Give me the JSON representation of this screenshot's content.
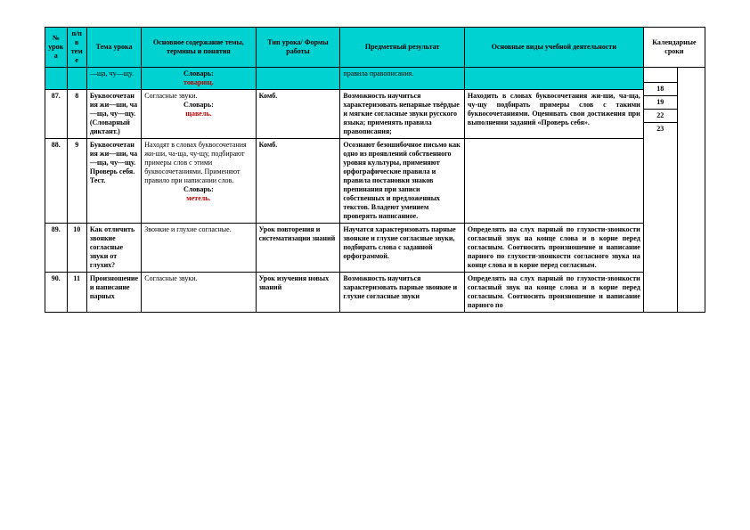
{
  "colors": {
    "header_bg": "#00d2d2",
    "border": "#000000",
    "text": "#000000",
    "accent_red": "#c00000",
    "page_bg": "#ffffff"
  },
  "typography": {
    "font_family": "Times New Roman",
    "header_fontsize": 8,
    "cell_fontsize": 8
  },
  "columns": {
    "num": "№ урока",
    "pp": "п/п в теме",
    "theme": "Тема урока",
    "content": "Основное содержание темы, термины и понятия",
    "type": "Тип урока/ Формы работы",
    "result": "Предметный результат",
    "activity": "Основные  виды учебной деятельности",
    "dates": "Календарные сроки"
  },
  "continuation_row": {
    "theme": "—ща, чу—щу.",
    "content_label": "Словарь:",
    "content_word": "товарищ.",
    "result": "правила правописания."
  },
  "rows": [
    {
      "num": "87.",
      "pp": "8",
      "theme": "Буквосочетания жи—ши, ча—ща, чу—щу. (Словарный диктант.)",
      "content_main": "Согласные звуки.",
      "content_label": "Словарь:",
      "content_word": "щавель.",
      "type": "Комб.",
      "result": "Возможность научиться характеризовать непарные твёрдые и мягкие согласные звуки русского языка; применять правила правописания;",
      "activity": "Находить в словах буквосочетания жи-ши, ча-ща, чу-щу подбирать примеры слов с такими буквосочетаниями. Оценивать свои достижения при выполнении заданий «Проверь себя».",
      "date1": "18",
      "date2": ""
    },
    {
      "num": "88.",
      "pp": "9",
      "theme": "Буквосочетания жи—ши, ча—ща, чу—щу. Проверь себя. Тест.",
      "content_main": "Находят в словах буквосочетания жи-ши, ча-ща, чу-щу, подбирают примеры слов с этими буквосочетаниями. Применяют правило при написании слов.",
      "content_label": "Словарь:",
      "content_word": "метель.",
      "type": "Комб.",
      "result": "Осознают безошибочное письмо как одно из проявлений собственного уровня культуры, применяют  орфографические правила и правила постановки знаков препинания при записи собственных и предложенных текстов. Владеют умением проверять написанное.",
      "activity": "",
      "date1": "19",
      "date2": ""
    },
    {
      "num": "89.",
      "pp": "10",
      "theme": "Как отличить звонкие согласные звуки от глухих?",
      "content_main": "Звонкие и глухие согласные.",
      "content_label": "",
      "content_word": "",
      "type": "Урок повторения и систематизации знаний",
      "result": "Научатся характеризовать парные звонкие и глухие согласные  звуки, подбирать слова с заданной орфограммой.",
      "activity": "Определять на слух парный по глухости-звонкости согласный звук на конце слова и в корне перед согласным. Соотносить произношение и написание парного по глухости-звонкости согласного звука на конце слова и в корне перед согласным.",
      "date1": "22",
      "date2": ""
    },
    {
      "num": "90.",
      "pp": "11",
      "theme": "Произношение и написание парных",
      "content_main": "Согласные звуки.",
      "content_label": "",
      "content_word": "",
      "type": "Урок изучения новых знаний",
      "result": "Возможность научиться характеризовать парные звонкие и глухие согласные звуки",
      "activity": "Определять на слух парный по глухости-звонкости согласный звук на конце слова и в корне перед согласным. Соотносить произношение и написание парного по",
      "date1": "23",
      "date2": ""
    }
  ]
}
